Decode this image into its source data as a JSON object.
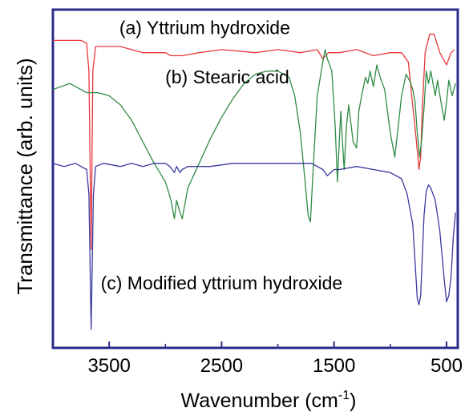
{
  "chart_data": {
    "type": "line",
    "title": "",
    "xlabel": "Wavenumber (cm",
    "xlabel_sup": "-1",
    "xlabel_tail": ")",
    "ylabel": "Transmittance (arb. units)",
    "xlim": [
      4000,
      400
    ],
    "x_reversed": true,
    "xticks": [
      3500,
      2500,
      1500,
      500
    ],
    "xtick_labels": [
      "3500",
      "2500",
      "1500",
      "500"
    ],
    "yticks_shown": false,
    "grid": false,
    "legend": "none",
    "series": [
      {
        "label": "(a) Yttrium hydroxide",
        "color": "#e8383d",
        "points": [
          [
            4000,
            90
          ],
          [
            3750,
            90
          ],
          [
            3700,
            89
          ],
          [
            3680,
            80
          ],
          [
            3660,
            22
          ],
          [
            3645,
            80
          ],
          [
            3620,
            88
          ],
          [
            3550,
            88
          ],
          [
            3400,
            88
          ],
          [
            3200,
            86
          ],
          [
            3000,
            86
          ],
          [
            2950,
            85
          ],
          [
            2850,
            85
          ],
          [
            2700,
            86
          ],
          [
            2500,
            87
          ],
          [
            2200,
            86
          ],
          [
            2000,
            87
          ],
          [
            1800,
            86
          ],
          [
            1650,
            87
          ],
          [
            1600,
            84
          ],
          [
            1550,
            86
          ],
          [
            1450,
            86
          ],
          [
            1300,
            87
          ],
          [
            1150,
            85
          ],
          [
            1000,
            86
          ],
          [
            900,
            86
          ],
          [
            840,
            83
          ],
          [
            790,
            65
          ],
          [
            770,
            58
          ],
          [
            745,
            48
          ],
          [
            730,
            52
          ],
          [
            715,
            68
          ],
          [
            690,
            86
          ],
          [
            650,
            92
          ],
          [
            610,
            92
          ],
          [
            560,
            86
          ],
          [
            500,
            82
          ],
          [
            460,
            86
          ],
          [
            430,
            87
          ]
        ]
      },
      {
        "label": "(b) Stearic acid",
        "color": "#2e8b45",
        "points": [
          [
            4000,
            74
          ],
          [
            3850,
            76
          ],
          [
            3700,
            73
          ],
          [
            3600,
            73
          ],
          [
            3500,
            72
          ],
          [
            3400,
            69
          ],
          [
            3300,
            64
          ],
          [
            3200,
            57
          ],
          [
            3100,
            50
          ],
          [
            3000,
            44
          ],
          [
            2950,
            38
          ],
          [
            2920,
            32
          ],
          [
            2900,
            38
          ],
          [
            2870,
            34
          ],
          [
            2850,
            32
          ],
          [
            2800,
            42
          ],
          [
            2700,
            50
          ],
          [
            2600,
            58
          ],
          [
            2500,
            65
          ],
          [
            2400,
            71
          ],
          [
            2300,
            76
          ],
          [
            2200,
            79
          ],
          [
            2100,
            80
          ],
          [
            2000,
            80
          ],
          [
            1900,
            78
          ],
          [
            1850,
            72
          ],
          [
            1800,
            60
          ],
          [
            1760,
            45
          ],
          [
            1730,
            33
          ],
          [
            1710,
            31
          ],
          [
            1690,
            45
          ],
          [
            1650,
            72
          ],
          [
            1600,
            83
          ],
          [
            1580,
            87
          ],
          [
            1560,
            84
          ],
          [
            1520,
            80
          ],
          [
            1490,
            62
          ],
          [
            1470,
            44
          ],
          [
            1460,
            52
          ],
          [
            1440,
            67
          ],
          [
            1430,
            60
          ],
          [
            1410,
            48
          ],
          [
            1390,
            62
          ],
          [
            1370,
            69
          ],
          [
            1330,
            57
          ],
          [
            1300,
            55
          ],
          [
            1280,
            67
          ],
          [
            1250,
            73
          ],
          [
            1220,
            78
          ],
          [
            1200,
            76
          ],
          [
            1180,
            80
          ],
          [
            1150,
            75
          ],
          [
            1120,
            82
          ],
          [
            1090,
            78
          ],
          [
            1050,
            74
          ],
          [
            1000,
            60
          ],
          [
            960,
            52
          ],
          [
            930,
            62
          ],
          [
            900,
            72
          ],
          [
            860,
            79
          ],
          [
            830,
            77
          ],
          [
            800,
            74
          ],
          [
            780,
            70
          ],
          [
            760,
            60
          ],
          [
            740,
            52
          ],
          [
            720,
            58
          ],
          [
            700,
            68
          ],
          [
            680,
            80
          ],
          [
            660,
            76
          ],
          [
            640,
            80
          ],
          [
            600,
            72
          ],
          [
            580,
            77
          ],
          [
            550,
            70
          ],
          [
            520,
            64
          ],
          [
            500,
            70
          ],
          [
            480,
            77
          ],
          [
            450,
            72
          ],
          [
            420,
            76
          ]
        ]
      },
      {
        "label": "(c) Modified yttrium hydroxide",
        "color": "#3a3aa0",
        "points": [
          [
            4000,
            50
          ],
          [
            3900,
            49
          ],
          [
            3800,
            50
          ],
          [
            3750,
            49
          ],
          [
            3700,
            48
          ],
          [
            3680,
            40
          ],
          [
            3660,
            -4
          ],
          [
            3640,
            40
          ],
          [
            3620,
            49
          ],
          [
            3550,
            50
          ],
          [
            3400,
            49
          ],
          [
            3300,
            50
          ],
          [
            3200,
            49
          ],
          [
            3100,
            50
          ],
          [
            3000,
            50
          ],
          [
            2960,
            49
          ],
          [
            2920,
            47
          ],
          [
            2900,
            49
          ],
          [
            2870,
            47
          ],
          [
            2850,
            48
          ],
          [
            2800,
            49
          ],
          [
            2600,
            49
          ],
          [
            2400,
            50
          ],
          [
            2200,
            50
          ],
          [
            2000,
            50
          ],
          [
            1800,
            50
          ],
          [
            1700,
            50
          ],
          [
            1600,
            48
          ],
          [
            1560,
            46
          ],
          [
            1500,
            48
          ],
          [
            1450,
            48
          ],
          [
            1300,
            49
          ],
          [
            1150,
            48
          ],
          [
            1000,
            47
          ],
          [
            900,
            45
          ],
          [
            850,
            40
          ],
          [
            800,
            30
          ],
          [
            775,
            15
          ],
          [
            760,
            6
          ],
          [
            745,
            4
          ],
          [
            730,
            7
          ],
          [
            715,
            20
          ],
          [
            700,
            33
          ],
          [
            680,
            41
          ],
          [
            660,
            43
          ],
          [
            640,
            42
          ],
          [
            600,
            38
          ],
          [
            560,
            28
          ],
          [
            520,
            12
          ],
          [
            500,
            5
          ],
          [
            480,
            7
          ],
          [
            460,
            13
          ],
          [
            440,
            26
          ],
          [
            420,
            34
          ]
        ]
      }
    ],
    "ylim": [
      -10,
      100
    ],
    "annotations": [
      {
        "text": "(a) Yttrium hydroxide",
        "x": 2650,
        "y": 92,
        "for": 0
      },
      {
        "text": "(b) Stearic acid",
        "x": 2450,
        "y": 76,
        "for": 1
      },
      {
        "text": "(c) Modified yttrium hydroxide",
        "x": 2500,
        "y": 9,
        "for": 2
      }
    ]
  }
}
